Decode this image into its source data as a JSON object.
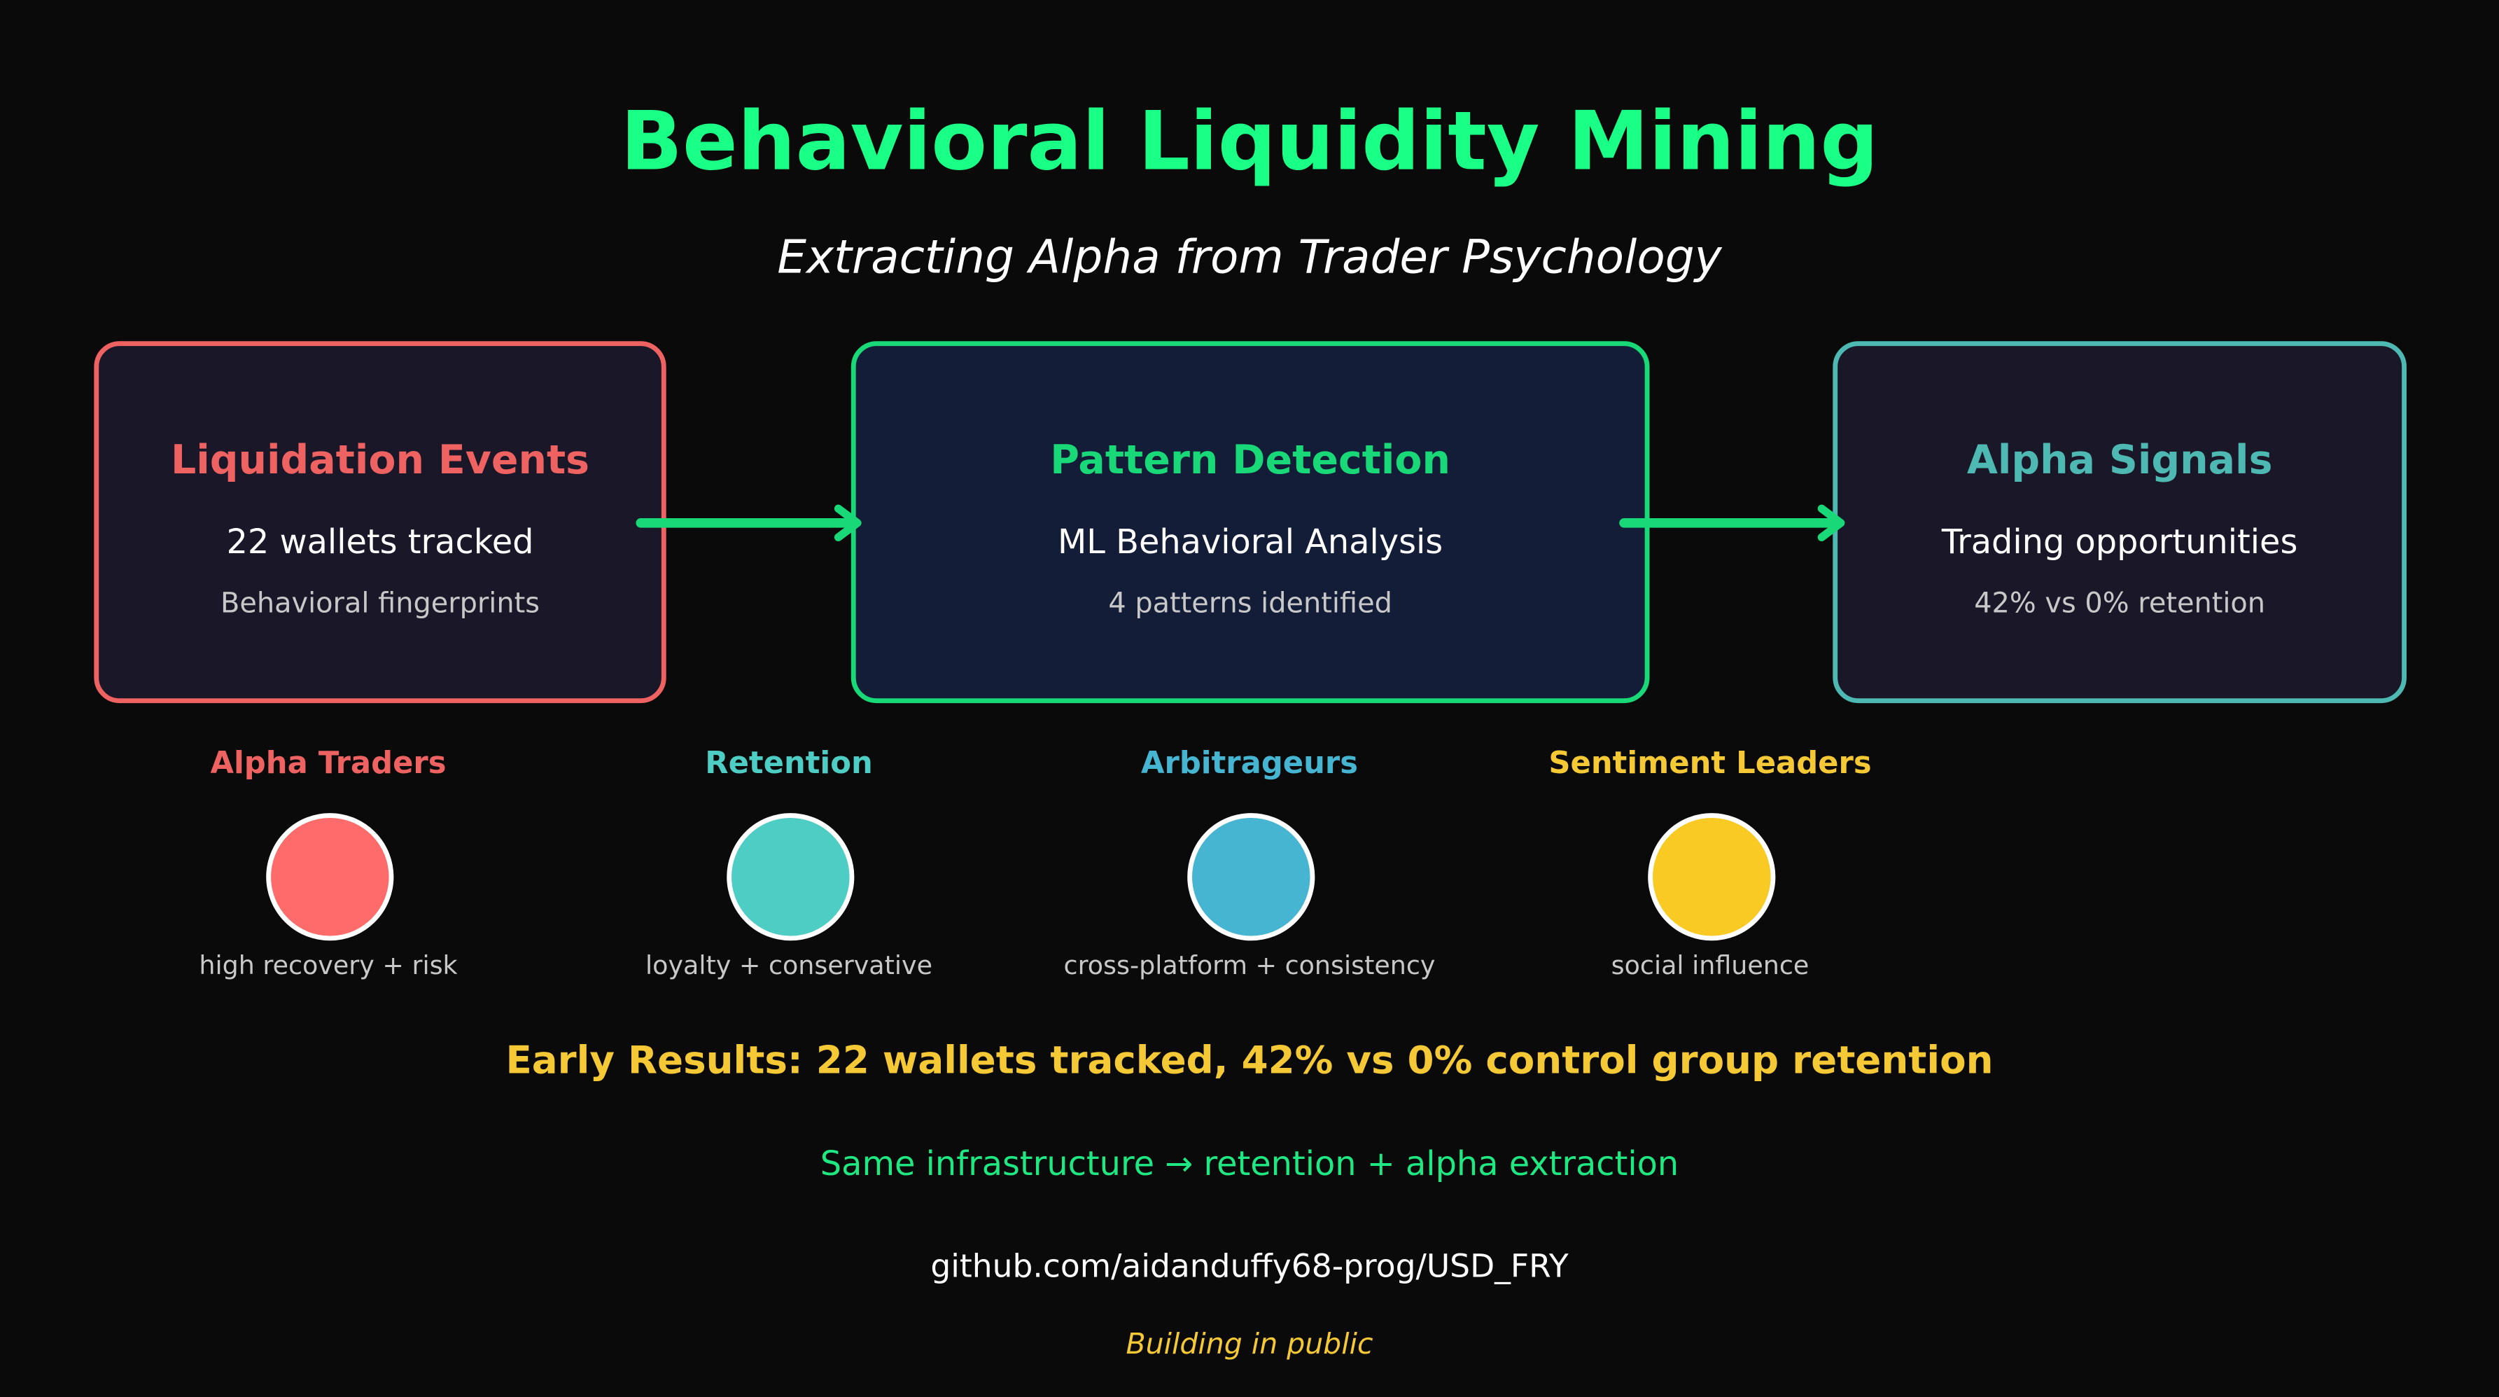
{
  "header": {
    "title": "Behavioral Liquidity Mining",
    "subtitle": "Extracting Alpha from Trader Psychology"
  },
  "pipeline": [
    {
      "title": "Liquidation Events",
      "line": "22 wallets tracked",
      "sub": "Behavioral fingerprints",
      "accent": "#ef6262",
      "fill": "#1a1828"
    },
    {
      "title": "Pattern Detection",
      "line": "ML Behavioral Analysis",
      "sub": "4 patterns identified",
      "accent": "#18d877",
      "fill": "#131d38"
    },
    {
      "title": "Alpha Signals",
      "line": "Trading opportunities",
      "sub": "42% vs 0% retention",
      "accent": "#4eb8b2",
      "fill": "#1a1828"
    }
  ],
  "arrow_color": "#18d877",
  "segments": [
    {
      "label": "Alpha Traders",
      "desc": "high recovery + risk",
      "color": "#ff6b6b",
      "label_color": "#ef6262"
    },
    {
      "label": "Retention",
      "desc": "loyalty + conservative",
      "color": "#4ecdc4",
      "label_color": "#4ecdc4"
    },
    {
      "label": "Arbitrageurs",
      "desc": "cross-platform + consistency",
      "color": "#45b5d1",
      "label_color": "#45b5d1"
    },
    {
      "label": "Sentiment Leaders",
      "desc": "social influence",
      "color": "#f9ca24",
      "label_color": "#f5c935"
    }
  ],
  "footer": {
    "results": "Early Results: 22 wallets tracked, 42% vs 0% control group retention",
    "infra": "Same infrastructure → retention + alpha extraction",
    "repo": "github.com/aidanduffy68-prog/USD_FRY",
    "public": "Building in public"
  }
}
